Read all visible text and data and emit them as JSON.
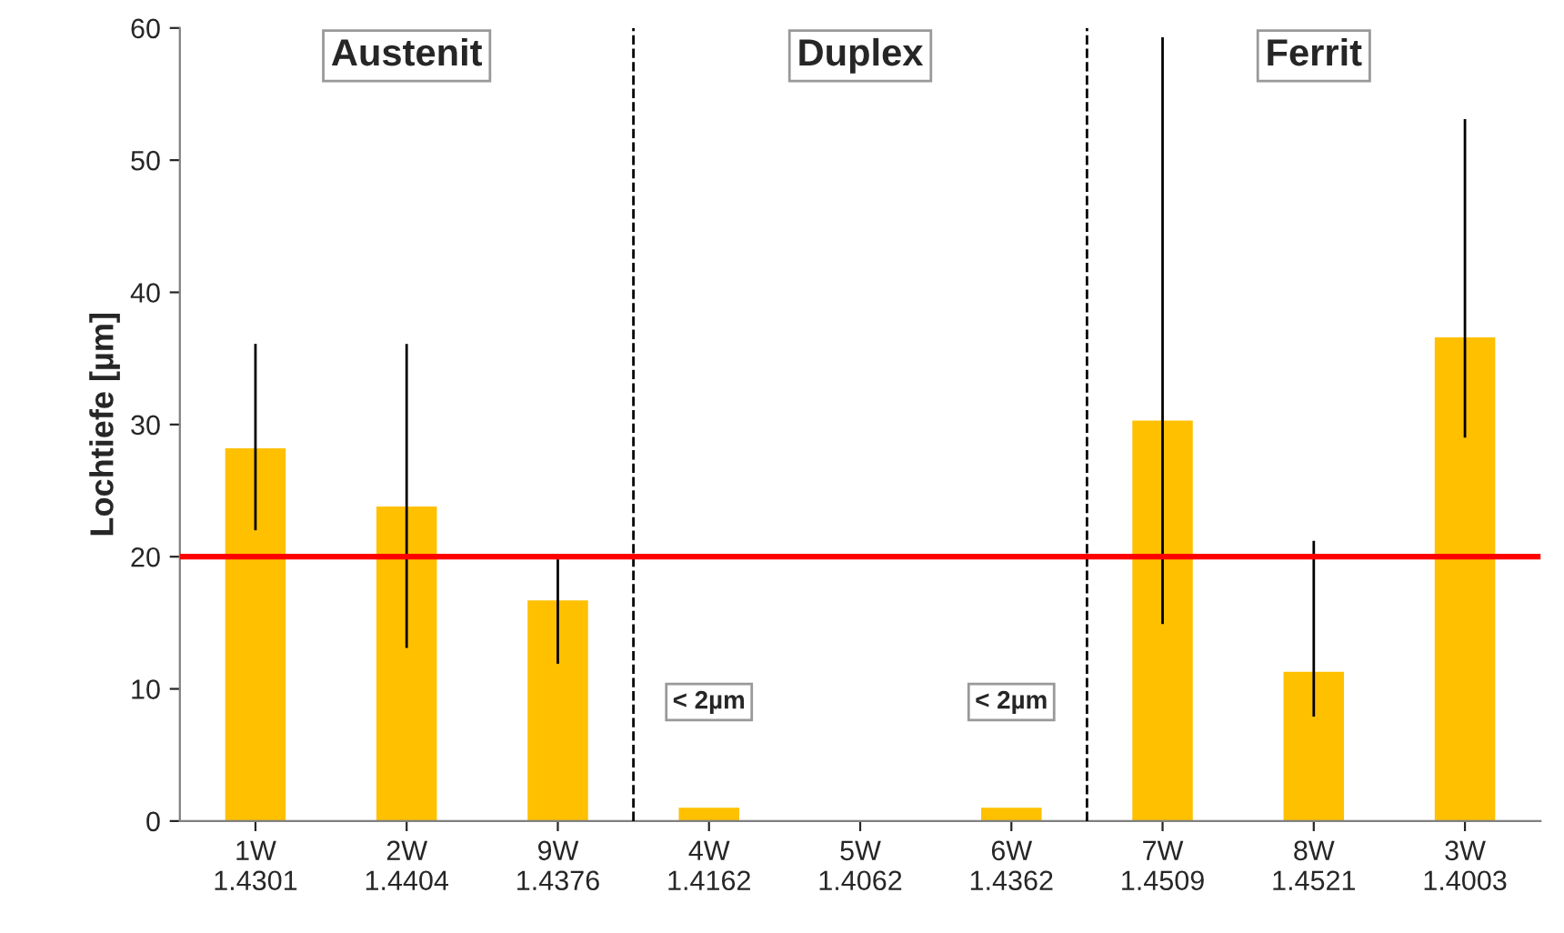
{
  "chart_data": {
    "type": "bar",
    "ylabel": "Lochtiefe [µm]",
    "categories": [
      "1W\n1.4301",
      "2W\n1.4404",
      "9W\n1.4376",
      "4W\n1.4162",
      "5W\n1.4062",
      "6W\n1.4362",
      "7W\n1.4509",
      "8W\n1.4521",
      "3W\n1.4003"
    ],
    "values": [
      28.2,
      23.8,
      16.7,
      1,
      0,
      1,
      30.3,
      11.3,
      36.6
    ],
    "errors": [
      [
        22.0,
        36.1
      ],
      [
        13.1,
        36.1
      ],
      [
        11.9,
        19.8
      ],
      null,
      null,
      null,
      [
        14.9,
        59.3
      ],
      [
        7.9,
        21.2
      ],
      [
        29.0,
        53.1
      ]
    ],
    "color": "#ffc000",
    "ylim": [
      0,
      60
    ],
    "yticks": [
      0,
      10,
      20,
      30,
      40,
      50,
      60
    ],
    "grid": false,
    "legend": false,
    "ref_lines": [
      {
        "axis": "y",
        "value": 20,
        "color": "#ff0000",
        "line_style": "solid"
      }
    ],
    "annotations": [
      "Austenit",
      "Duplex",
      "Ferrit",
      "< 2µm",
      "< 2µm"
    ]
  }
}
